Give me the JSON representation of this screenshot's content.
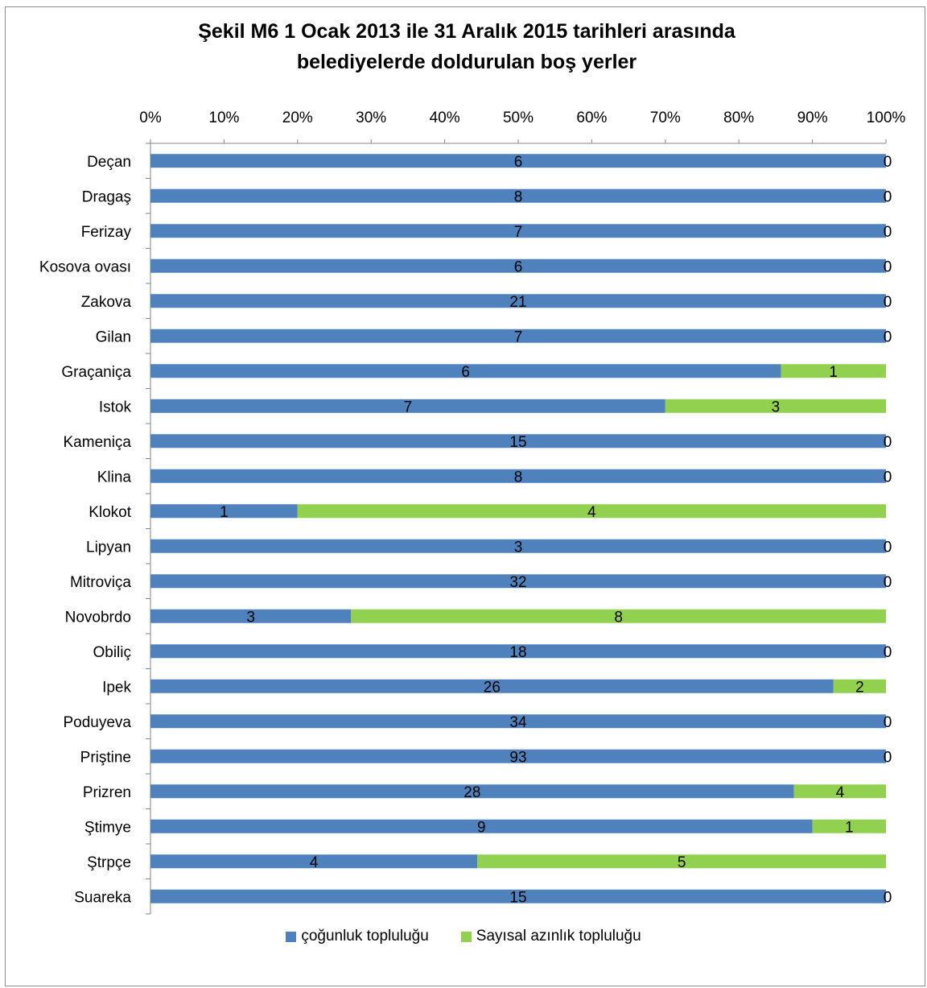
{
  "chart_data": {
    "type": "bar",
    "orientation": "horizontal",
    "stacked": "percent",
    "title": "Şekil M6 1 Ocak 2013 ile 31 Aralık 2015 tarihleri arasında\nbelediyelerde doldurulan boş yerler",
    "x_ticks": [
      "0%",
      "10%",
      "20%",
      "30%",
      "40%",
      "50%",
      "60%",
      "70%",
      "80%",
      "90%",
      "100%"
    ],
    "xlim": [
      0,
      100
    ],
    "x_axis_position": "top",
    "grid": false,
    "legend_position": "bottom",
    "categories": [
      "Deçan",
      "Dragaş",
      "Ferizay",
      "Kosova ovası",
      "Zakova",
      "Gilan",
      "Graçaniça",
      "Istok",
      "Kameniça",
      "Klina",
      "Klokot",
      "Lipyan",
      "Mitroviça",
      "Novobrdo",
      "Obiliç",
      "Ipek",
      "Poduyeva",
      "Priştine",
      "Prizren",
      "Ştimye",
      "Ştrpçe",
      "Suareka"
    ],
    "series": [
      {
        "name": "çoğunluk topluluğu",
        "color": "#4f81bd",
        "values": [
          6,
          8,
          7,
          6,
          21,
          7,
          6,
          7,
          15,
          8,
          1,
          3,
          32,
          3,
          18,
          26,
          34,
          93,
          28,
          9,
          4,
          15
        ]
      },
      {
        "name": "Sayısal azınlık topluluğu",
        "color": "#92d050",
        "values": [
          0,
          0,
          0,
          0,
          0,
          0,
          1,
          3,
          0,
          0,
          4,
          0,
          0,
          8,
          0,
          2,
          0,
          0,
          4,
          1,
          5,
          0
        ]
      }
    ]
  }
}
